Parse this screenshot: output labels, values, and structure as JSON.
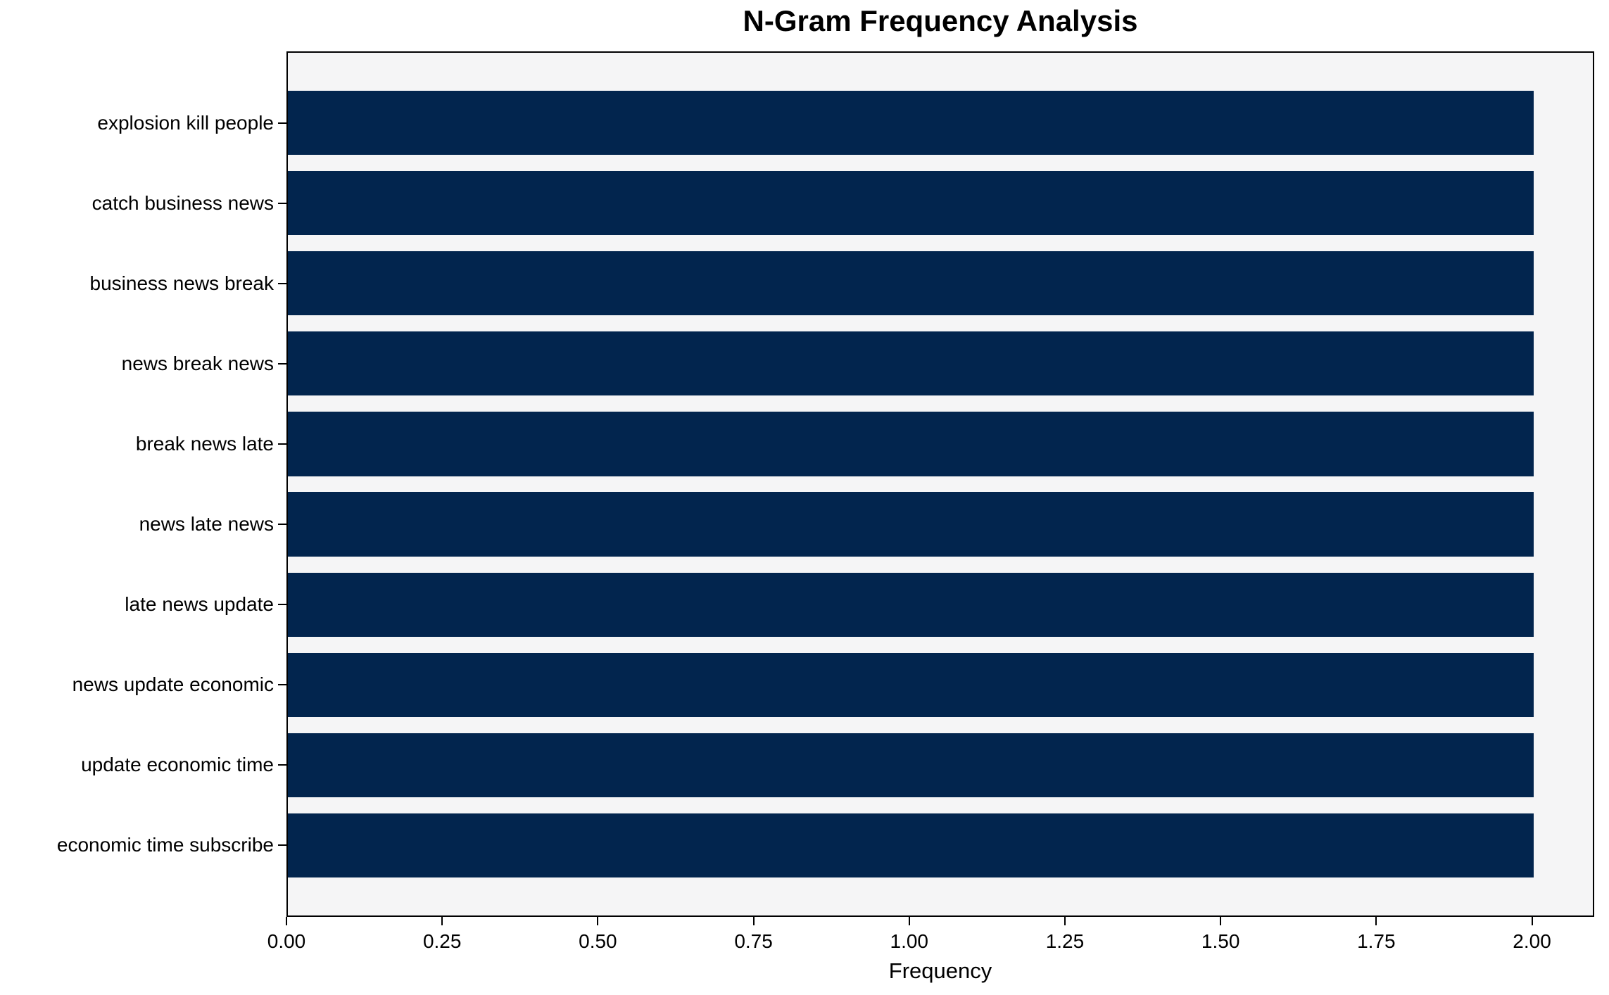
{
  "chart_data": {
    "type": "bar",
    "orientation": "horizontal",
    "title": "N-Gram Frequency Analysis",
    "xlabel": "Frequency",
    "ylabel": "",
    "categories": [
      "explosion kill people",
      "catch business news",
      "business news break",
      "news break news",
      "break news late",
      "news late news",
      "late news update",
      "news update economic",
      "update economic time",
      "economic time subscribe"
    ],
    "values": [
      2,
      2,
      2,
      2,
      2,
      2,
      2,
      2,
      2,
      2
    ],
    "xlim": [
      0,
      2.1
    ],
    "xtick_labels": [
      "0.00",
      "0.25",
      "0.50",
      "0.75",
      "1.00",
      "1.25",
      "1.50",
      "1.75",
      "2.00"
    ],
    "grid": false,
    "bar_color": "#02254e",
    "plot_bg_color": "#f5f5f6",
    "figure_bg_color": "#ffffff",
    "spine_color": "#000000"
  }
}
